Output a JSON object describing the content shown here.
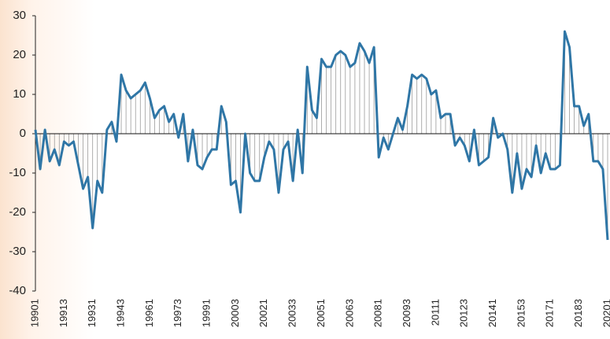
{
  "chart_data": {
    "type": "line",
    "categories": [
      "19901",
      null,
      null,
      null,
      null,
      null,
      "19913",
      null,
      null,
      null,
      null,
      null,
      "19931",
      null,
      null,
      null,
      null,
      null,
      "19943",
      null,
      null,
      null,
      null,
      null,
      "19961",
      null,
      null,
      null,
      null,
      null,
      "19973",
      null,
      null,
      null,
      null,
      null,
      "19991",
      null,
      null,
      null,
      null,
      null,
      "20003",
      null,
      null,
      null,
      null,
      null,
      "20021",
      null,
      null,
      null,
      null,
      null,
      "20033",
      null,
      null,
      null,
      null,
      null,
      "20051",
      null,
      null,
      null,
      null,
      null,
      "20063",
      null,
      null,
      null,
      null,
      null,
      "20081",
      null,
      null,
      null,
      null,
      null,
      "20093",
      null,
      null,
      null,
      null,
      null,
      "20111",
      null,
      null,
      null,
      null,
      null,
      "20123",
      null,
      null,
      null,
      null,
      null,
      "20141",
      null,
      null,
      null,
      null,
      null,
      "20153",
      null,
      null,
      null,
      null,
      null,
      "20171",
      null,
      null,
      null,
      null,
      null,
      "20183",
      null,
      null,
      null,
      null,
      null,
      "20201"
    ],
    "series": [
      {
        "color": "#2f76a6",
        "values": [
          1,
          -9,
          1,
          -7,
          -4,
          -8,
          -2,
          -3,
          -2,
          -8,
          -14,
          -11,
          -24,
          -12,
          -15,
          1,
          3,
          -2,
          15,
          11,
          9,
          10,
          11,
          13,
          9,
          4,
          6,
          7,
          3,
          5,
          -1,
          5,
          -7,
          1,
          -8,
          -9,
          -6,
          -4,
          -4,
          7,
          3,
          -13,
          -12,
          -20,
          0,
          -10,
          -12,
          -12,
          -6,
          -2,
          -4,
          -15,
          -4,
          -2,
          -12,
          1,
          -10,
          17,
          6,
          4,
          19,
          17,
          17,
          20,
          21,
          20,
          17,
          18,
          23,
          21,
          18,
          22,
          -6,
          -1,
          -4,
          0,
          4,
          1,
          7,
          15,
          14,
          15,
          14,
          10,
          11,
          4,
          5,
          5,
          -3,
          -1,
          -3,
          -7,
          1,
          -8,
          -7,
          -6,
          4,
          -1,
          0,
          -4,
          -15,
          -5,
          -14,
          -9,
          -11,
          -3,
          -10,
          -5,
          -9,
          -9,
          -8,
          26,
          22,
          7,
          7,
          2,
          5,
          -7,
          -7,
          -9,
          -27
        ]
      }
    ],
    "ylim": [
      -40,
      30
    ],
    "yticks": [
      -40,
      -30,
      -20,
      -10,
      0,
      10,
      20,
      30
    ],
    "drop_lines": true
  }
}
